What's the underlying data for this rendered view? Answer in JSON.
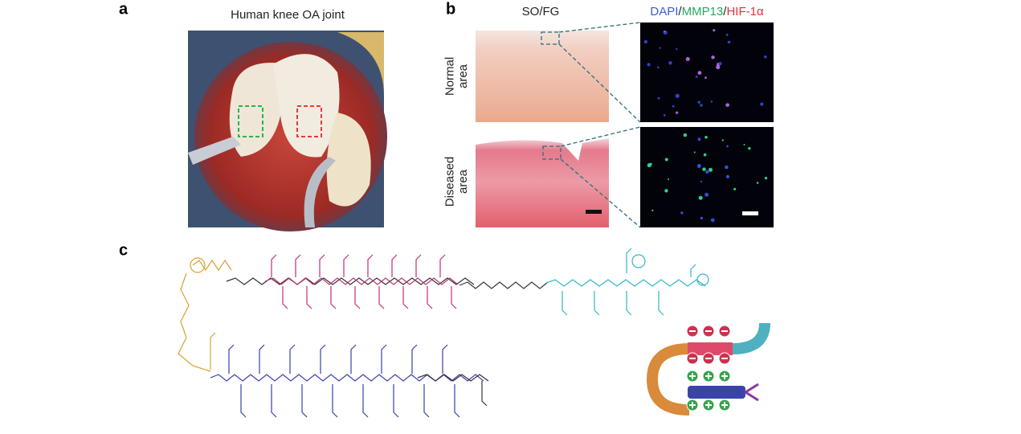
{
  "panels": {
    "a": {
      "label": "a",
      "title": "Human knee OA joint"
    },
    "b": {
      "label": "b",
      "title": "SO/FG",
      "stain_title": [
        "DAPI",
        "/",
        "MMP13",
        "/",
        "HIF-1α"
      ],
      "rows": [
        [
          "Normal",
          "area"
        ],
        [
          "Diseased",
          "area"
        ]
      ]
    },
    "c": {
      "label": "c"
    }
  }
}
